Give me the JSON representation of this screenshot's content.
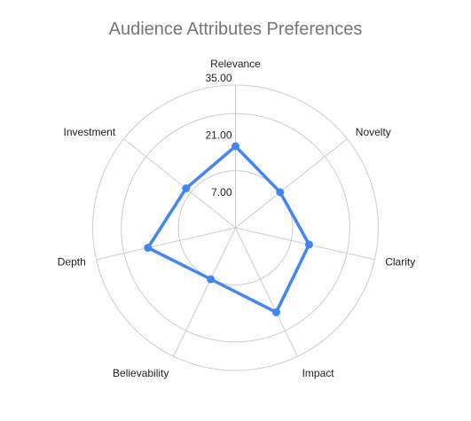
{
  "chart_data": {
    "type": "radar",
    "title": "Audience Attributes Preferences",
    "categories": [
      "Relevance",
      "Novelty",
      "Clarity",
      "Impact",
      "Believability",
      "Depth",
      "Investment"
    ],
    "series": [
      {
        "values": [
          20.0,
          14.0,
          18.5,
          23.0,
          14.0,
          22.0,
          15.5
        ]
      }
    ],
    "rlim": [
      0,
      35
    ],
    "ticks": [
      {
        "value": 7,
        "label": "7.00"
      },
      {
        "value": 21,
        "label": "21.00"
      },
      {
        "value": 35,
        "label": "35.00"
      }
    ],
    "gridlines": [
      14,
      28,
      35
    ],
    "colors": {
      "series": "#4285f4",
      "grid": "#cccccc",
      "title": "#757575"
    },
    "legend": "none"
  }
}
